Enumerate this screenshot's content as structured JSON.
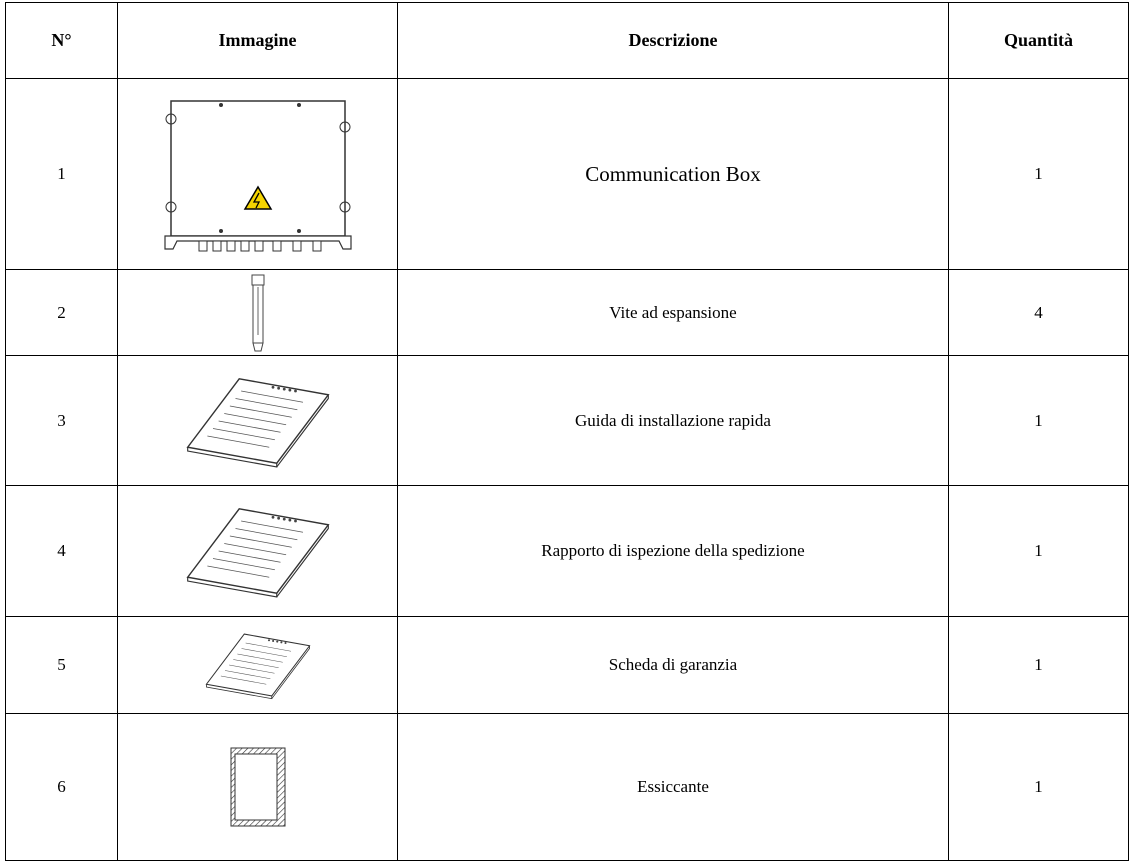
{
  "table": {
    "header": [
      "N°",
      "Immagine",
      "Descrizione",
      "Quantità"
    ],
    "rows": [
      {
        "number": 1,
        "description": "Communication Box",
        "quantity": 1
      },
      {
        "number": 2,
        "description": "Vite ad espansione",
        "quantity": 4
      },
      {
        "number": 3,
        "description": "Guida di installazione rapida",
        "quantity": 1
      },
      {
        "number": 4,
        "description": "Rapporto di ispezione della spedizione",
        "quantity": 1
      },
      {
        "number": 5,
        "description": "Scheda di garanzia",
        "quantity": 1
      },
      {
        "number": 6,
        "description": "Essiccante",
        "quantity": 1
      }
    ]
  }
}
